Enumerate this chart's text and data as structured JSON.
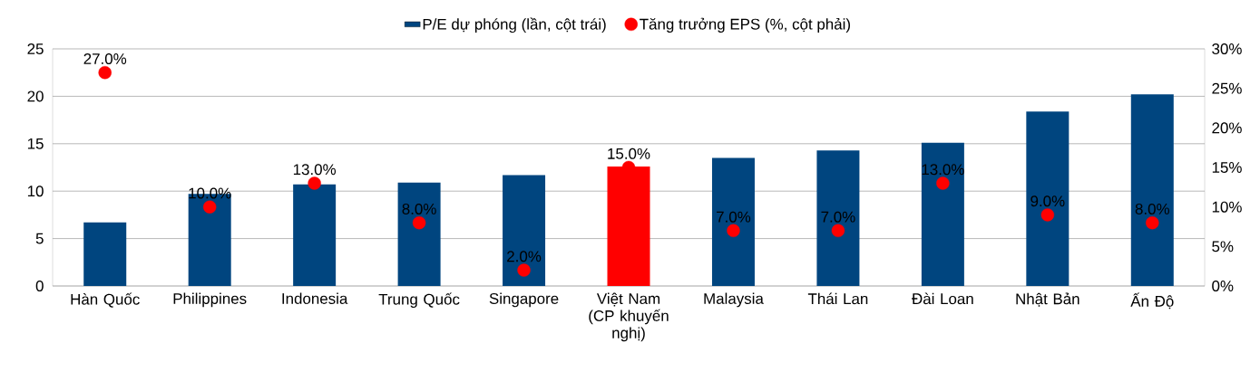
{
  "chart_data": {
    "type": "bar",
    "categories": [
      "Hàn Quốc",
      "Philippines",
      "Indonesia",
      "Trung Quốc",
      "Singapore",
      "Việt Nam (CP khuyến nghị)",
      "Malaysia",
      "Thái Lan",
      "Đài Loan",
      "Nhật Bản",
      "Ấn Độ"
    ],
    "series": [
      {
        "name": "P/E dự phóng (lần, cột trái)",
        "type": "bar",
        "color": "#00457f",
        "colors": [
          "#00457f",
          "#00457f",
          "#00457f",
          "#00457f",
          "#00457f",
          "#ff0000",
          "#00457f",
          "#00457f",
          "#00457f",
          "#00457f",
          "#00457f"
        ],
        "values": [
          6.7,
          9.7,
          10.7,
          10.9,
          11.7,
          12.6,
          13.5,
          14.3,
          15.1,
          18.4,
          20.2
        ]
      },
      {
        "name": "Tăng trưởng EPS (%, cột phải)",
        "type": "scatter",
        "axis": "y2",
        "color": "#ff0000",
        "values": [
          27,
          10,
          13,
          8,
          2,
          15,
          7,
          7,
          13,
          9,
          8
        ],
        "value_labels": [
          "27.0%",
          "10.0%",
          "13.0%",
          "8.0%",
          "2.0%",
          "15.0%",
          "7.0%",
          "7.0%",
          "13.0%",
          "9.0%",
          "8.0%"
        ]
      }
    ],
    "ylim": [
      0,
      25
    ],
    "yticks": [
      0,
      5,
      10,
      15,
      20,
      25
    ],
    "y2lim": [
      0,
      30
    ],
    "y2ticks": [
      {
        "value": 0,
        "label": "0%"
      },
      {
        "value": 5,
        "label": "5%"
      },
      {
        "value": 10,
        "label": "10%"
      },
      {
        "value": 15,
        "label": "15%"
      },
      {
        "value": 20,
        "label": "20%"
      },
      {
        "value": 25,
        "label": "25%"
      },
      {
        "value": 30,
        "label": "30%"
      }
    ],
    "grid": "y",
    "legend": "top"
  }
}
